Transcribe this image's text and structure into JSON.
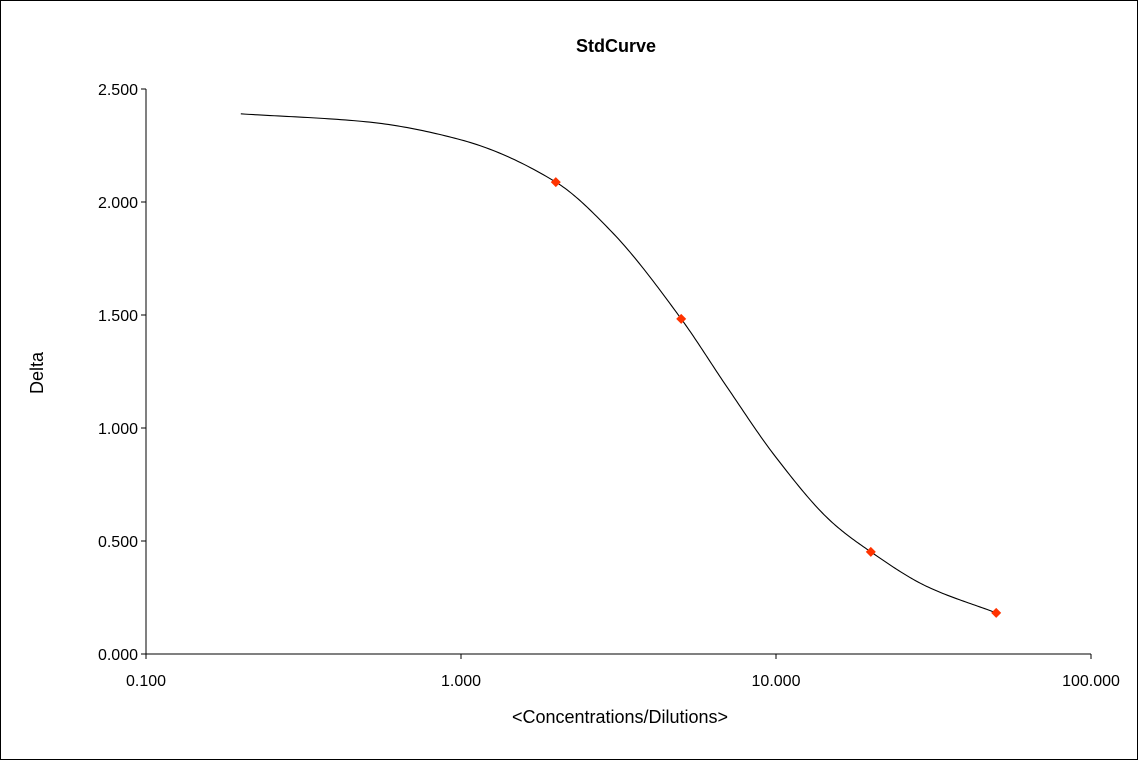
{
  "chart_data": {
    "type": "scatter",
    "title": "StdCurve",
    "xlabel": "<Concentrations/Dilutions>",
    "ylabel": "Delta",
    "x_scale": "log",
    "xlim": [
      0.1,
      100
    ],
    "ylim": [
      0,
      2.5
    ],
    "x_ticks": [
      0.1,
      1,
      10,
      100
    ],
    "x_tick_labels": [
      "0.100",
      "1.000",
      "10.000",
      "100.000"
    ],
    "y_ticks": [
      0,
      0.5,
      1,
      1.5,
      2,
      2.5
    ],
    "y_tick_labels": [
      "0.000",
      "0.500",
      "1.000",
      "1.500",
      "2.000",
      "2.500"
    ],
    "grid": false,
    "legend": "none",
    "series": [
      {
        "points": [
          {
            "x": 2,
            "y": 2.088
          },
          {
            "x": 5,
            "y": 1.483
          },
          {
            "x": 20,
            "y": 0.452
          },
          {
            "x": 50,
            "y": 0.182
          }
        ],
        "color": "#ff3300"
      }
    ],
    "fit_curve": {
      "type": "4PL",
      "x_range": [
        0.2,
        50
      ],
      "points": [
        {
          "x": 0.2,
          "y": 2.39
        },
        {
          "x": 0.5,
          "y": 2.355
        },
        {
          "x": 1,
          "y": 2.275
        },
        {
          "x": 2,
          "y": 2.088
        },
        {
          "x": 3,
          "y": 1.87
        },
        {
          "x": 5,
          "y": 1.483
        },
        {
          "x": 7,
          "y": 1.18
        },
        {
          "x": 10,
          "y": 0.87
        },
        {
          "x": 15,
          "y": 0.585
        },
        {
          "x": 20,
          "y": 0.452
        },
        {
          "x": 30,
          "y": 0.3
        },
        {
          "x": 50,
          "y": 0.182
        }
      ],
      "color": "#000000"
    }
  }
}
